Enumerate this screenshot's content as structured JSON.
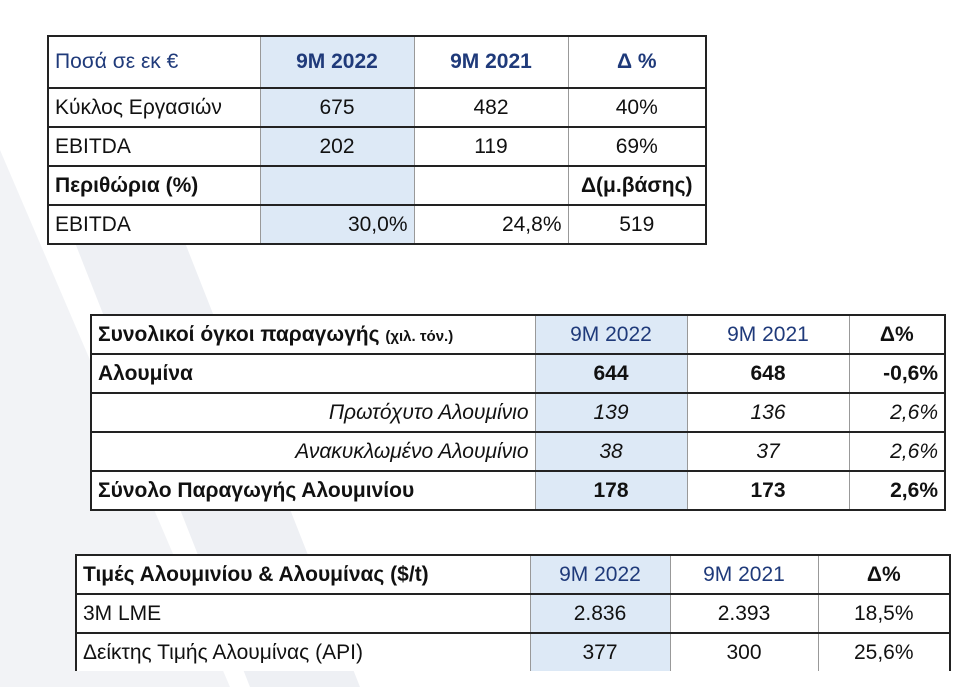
{
  "table1": {
    "header": {
      "label": "Ποσά σε εκ €",
      "col1": "9Μ 2022",
      "col2": "9Μ 2021",
      "col3": "Δ %"
    },
    "rows": [
      {
        "label": "Κύκλος Εργασιών",
        "v1": "675",
        "v2": "482",
        "v3": "40%"
      },
      {
        "label": "EBITDA",
        "v1": "202",
        "v2": "119",
        "v3": "69%"
      },
      {
        "label": "Περιθώρια (%)",
        "v1": "",
        "v2": "",
        "v3": "Δ(μ.βάσης)"
      },
      {
        "label": "EBITDA",
        "v1": "30,0%",
        "v2": "24,8%",
        "v3": "519"
      }
    ]
  },
  "table2": {
    "header": {
      "label": "Συνολικοί όγκοι παραγωγής",
      "unit": "(χιλ. τόν.)",
      "col1": "9Μ 2022",
      "col2": "9Μ 2021",
      "col3": "Δ%"
    },
    "rows": [
      {
        "label": "Αλουμίνα",
        "v1": "644",
        "v2": "648",
        "v3": "-0,6%"
      },
      {
        "label": "Πρωτόχυτο Αλουμίνιο",
        "v1": "139",
        "v2": "136",
        "v3": "2,6%"
      },
      {
        "label": "Ανακυκλωμένο Αλουμίνιο",
        "v1": "38",
        "v2": "37",
        "v3": "2,6%"
      },
      {
        "label": "Σύνολο Παραγωγής Αλουμινίου",
        "v1": "178",
        "v2": "173",
        "v3": "2,6%"
      }
    ]
  },
  "table3": {
    "header": {
      "label": "Τιμές Αλουμινίου & Αλουμίνας ($/t)",
      "col1": "9Μ 2022",
      "col2": "9Μ 2021",
      "col3": "Δ%"
    },
    "rows": [
      {
        "label": "3M LME",
        "v1": "2.836",
        "v2": "2.393",
        "v3": "18,5%"
      },
      {
        "label": "Δείκτης Τιμής Αλουμίνας (API)",
        "v1": "377",
        "v2": "300",
        "v3": "25,6%"
      }
    ]
  },
  "colors": {
    "highlight": "#dde9f6",
    "navy": "#1f3a7a",
    "background_shape": "#f1f2f5"
  }
}
